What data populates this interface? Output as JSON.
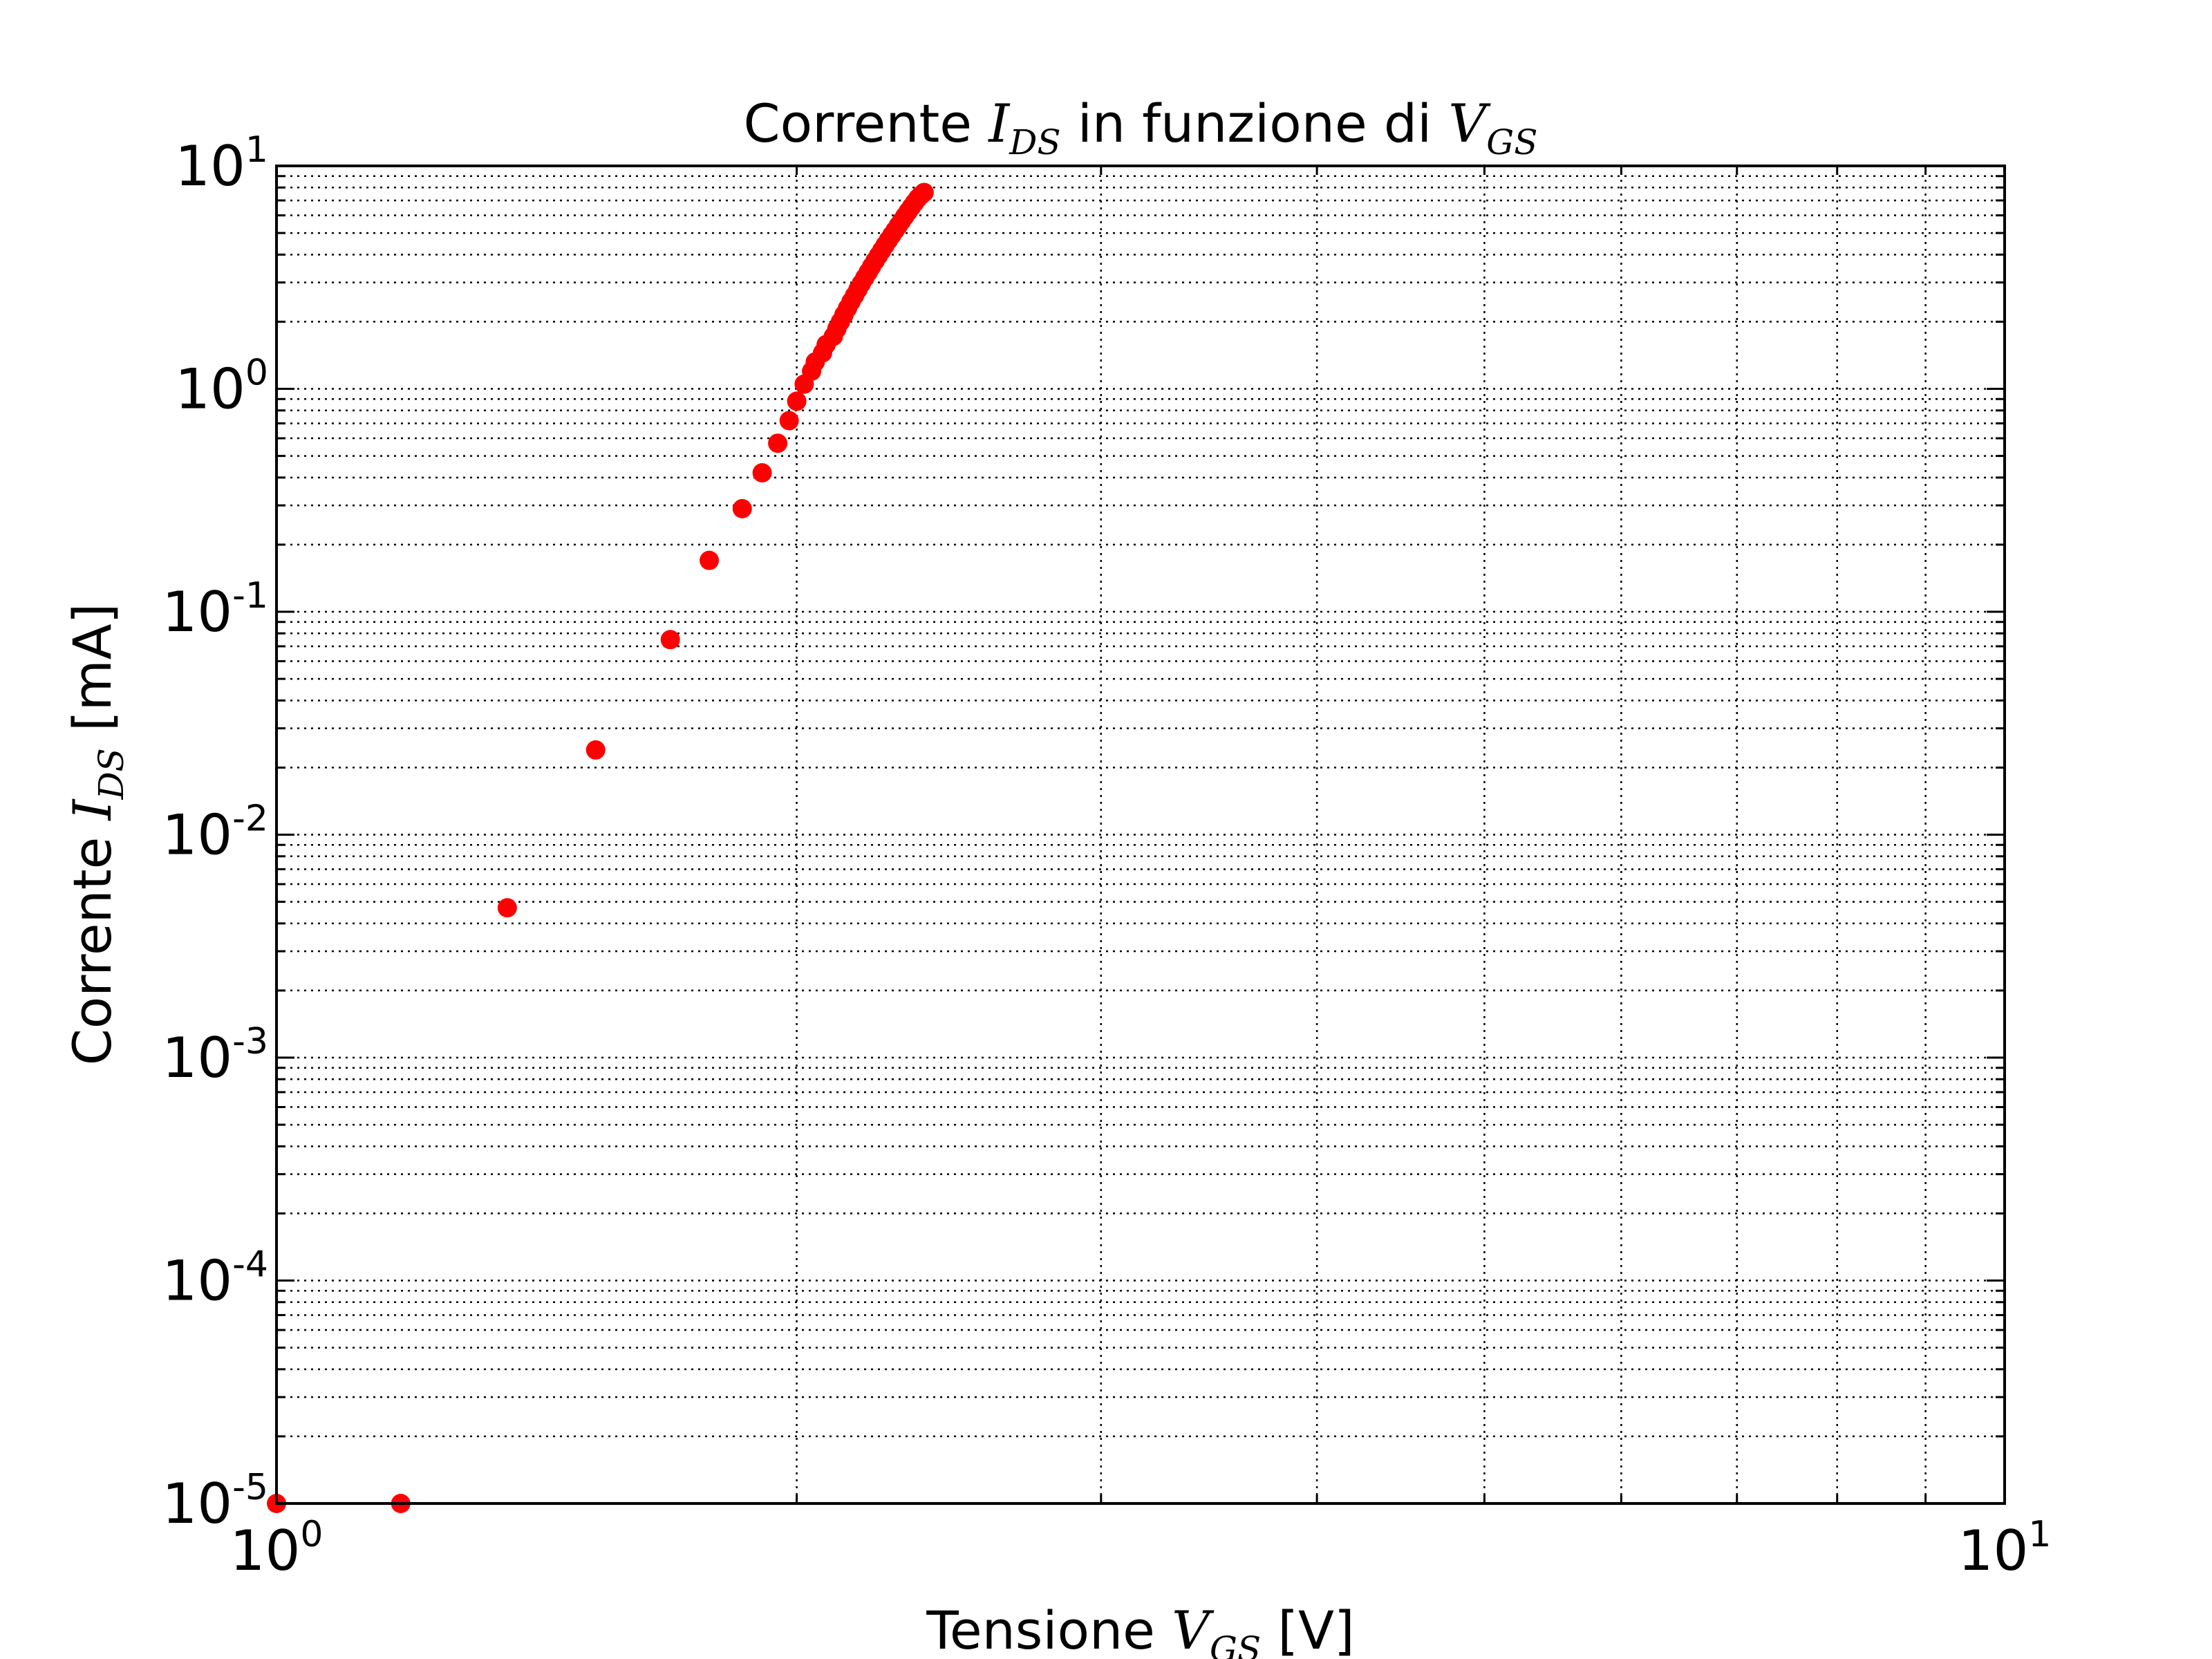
{
  "chart_data": {
    "type": "scatter",
    "title": {
      "prefix": "Corrente ",
      "sym1": "I",
      "sub1": "DS",
      "middle": " in funzione di ",
      "sym2": "V",
      "sub2": "GS"
    },
    "xlabel": {
      "prefix": "Tensione ",
      "sym": "V",
      "sub": "GS",
      "suffix": " [V]"
    },
    "ylabel": {
      "prefix": "Corrente ",
      "sym": "I",
      "sub": "DS",
      "suffix": " [mA]"
    },
    "x_scale": "log",
    "y_scale": "log",
    "xlim": [
      1,
      10
    ],
    "ylim": [
      1e-05,
      10
    ],
    "grid": true,
    "grid_style": "dotted",
    "x_ticks": [
      {
        "base": "10",
        "exp": "0",
        "value": 1
      },
      {
        "base": "10",
        "exp": "1",
        "value": 10
      }
    ],
    "y_ticks": [
      {
        "base": "10",
        "exp": "1",
        "value": 10
      },
      {
        "base": "10",
        "exp": "0",
        "value": 1
      },
      {
        "base": "10",
        "exp": "-1",
        "value": 0.1
      },
      {
        "base": "10",
        "exp": "-2",
        "value": 0.01
      },
      {
        "base": "10",
        "exp": "-3",
        "value": 0.001
      },
      {
        "base": "10",
        "exp": "-4",
        "value": 0.0001
      },
      {
        "base": "10",
        "exp": "-5",
        "value": 1e-05
      }
    ],
    "marker_color": "#ff0000",
    "series": [
      {
        "x": [
          1.0,
          1.18,
          1.36,
          1.53,
          1.69,
          1.78,
          1.86,
          1.91,
          1.95,
          1.98,
          2.0,
          2.02,
          2.04,
          2.05,
          2.07,
          2.08,
          2.1,
          2.11,
          2.12,
          2.13,
          2.14,
          2.15,
          2.16,
          2.17,
          2.18,
          2.19,
          2.2,
          2.21,
          2.22,
          2.23,
          2.24,
          2.25,
          2.26,
          2.27,
          2.28,
          2.29,
          2.3,
          2.31,
          2.32,
          2.33,
          2.34,
          2.35,
          2.36,
          2.37
        ],
        "y": [
          1e-05,
          1e-05,
          0.0047,
          0.024,
          0.075,
          0.17,
          0.29,
          0.42,
          0.57,
          0.72,
          0.88,
          1.05,
          1.2,
          1.32,
          1.45,
          1.58,
          1.72,
          1.86,
          2.0,
          2.15,
          2.3,
          2.46,
          2.62,
          2.79,
          2.97,
          3.15,
          3.34,
          3.54,
          3.75,
          3.96,
          4.18,
          4.41,
          4.65,
          4.89,
          5.14,
          5.4,
          5.67,
          5.95,
          6.24,
          6.54,
          6.84,
          7.15,
          7.4,
          7.6
        ]
      }
    ]
  }
}
